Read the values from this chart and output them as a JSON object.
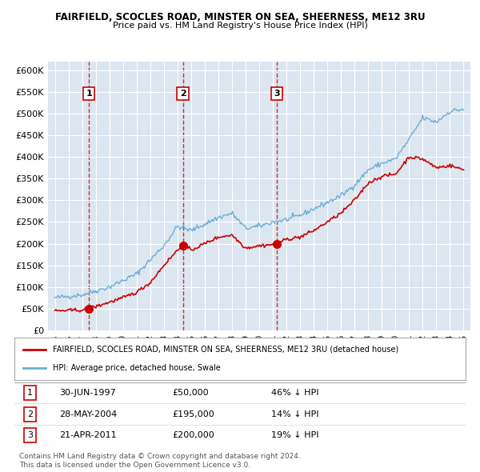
{
  "title1": "FAIRFIELD, SCOCLES ROAD, MINSTER ON SEA, SHEERNESS, ME12 3RU",
  "title2": "Price paid vs. HM Land Registry's House Price Index (HPI)",
  "ylabel": "",
  "xlim_start": 1994.5,
  "xlim_end": 2025.5,
  "ylim": [
    0,
    620000
  ],
  "yticks": [
    0,
    50000,
    100000,
    150000,
    200000,
    250000,
    300000,
    350000,
    400000,
    450000,
    500000,
    550000,
    600000
  ],
  "ytick_labels": [
    "£0",
    "£50K",
    "£100K",
    "£150K",
    "£200K",
    "£250K",
    "£300K",
    "£350K",
    "£400K",
    "£450K",
    "£500K",
    "£550K",
    "£600K"
  ],
  "background_color": "#dce6f0",
  "plot_bg_color": "#dce6f0",
  "grid_color": "#ffffff",
  "sale_color": "#cc0000",
  "hpi_color": "#6baed6",
  "sale_marker_color": "#cc0000",
  "dashed_line_color": "#cc0000",
  "transactions": [
    {
      "label": "1",
      "date_year": 1997.5,
      "price": 50000
    },
    {
      "label": "2",
      "date_year": 2004.4,
      "price": 195000
    },
    {
      "label": "3",
      "date_year": 2011.3,
      "price": 200000
    }
  ],
  "legend_sale_label": "FAIRFIELD, SCOCLES ROAD, MINSTER ON SEA, SHEERNESS, ME12 3RU (detached house)",
  "legend_hpi_label": "HPI: Average price, detached house, Swale",
  "table_rows": [
    {
      "num": "1",
      "date": "30-JUN-1997",
      "price": "£50,000",
      "hpi": "46% ↓ HPI"
    },
    {
      "num": "2",
      "date": "28-MAY-2004",
      "price": "£195,000",
      "hpi": "14% ↓ HPI"
    },
    {
      "num": "3",
      "date": "21-APR-2011",
      "price": "£200,000",
      "hpi": "19% ↓ HPI"
    }
  ],
  "footnote": "Contains HM Land Registry data © Crown copyright and database right 2024.\nThis data is licensed under the Open Government Licence v3.0.",
  "xticks": [
    1995,
    1996,
    1997,
    1998,
    1999,
    2000,
    2001,
    2002,
    2003,
    2004,
    2005,
    2006,
    2007,
    2008,
    2009,
    2010,
    2011,
    2012,
    2013,
    2014,
    2015,
    2016,
    2017,
    2018,
    2019,
    2020,
    2021,
    2022,
    2023,
    2024,
    2025
  ]
}
